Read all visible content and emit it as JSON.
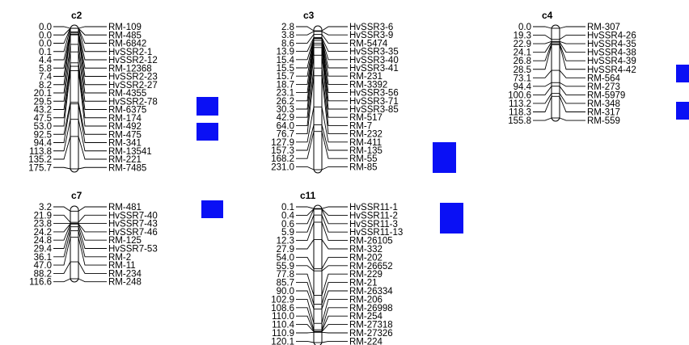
{
  "accent_color": "#0a10f5",
  "chromosomes": [
    {
      "name": "c2",
      "pos": [
        "0.0",
        "0.0",
        "0.0",
        "0.1",
        "4.4",
        "5.8",
        "7.4",
        "8.2",
        "20.1",
        "29.5",
        "43.2",
        "47.5",
        "53.0",
        "92.5",
        "94.4",
        "113.8",
        "135.2",
        "175.7"
      ],
      "markers": [
        "RM-109",
        "RM-485",
        "RM-6842",
        "HvSSR2-1",
        "HvSSR2-12",
        "RM-12368",
        "HvSSR2-23",
        "HvSSR2-27",
        "RM-4355",
        "HvSSR2-78",
        "RM-6375",
        "RM-174",
        "RM-492",
        "RM-475",
        "RM-341",
        "RM-13541",
        "RM-221",
        "RM-7485"
      ]
    },
    {
      "name": "c3",
      "pos": [
        "2.8",
        "3.8",
        "8.6",
        "13.9",
        "15.4",
        "15.5",
        "15.7",
        "18.7",
        "23.1",
        "26.2",
        "30.3",
        "42.9",
        "64.0",
        "76.7",
        "127.9",
        "157.3",
        "168.2",
        "231.0"
      ],
      "markers": [
        "HvSSR3-6",
        "HvSSR3-9",
        "RM-5474",
        "HvSSR3-35",
        "HvSSR3-40",
        "HvSSR3-41",
        "RM-231",
        "RM-3392",
        "HvSSR3-56",
        "HvSSR3-71",
        "HvSSR3-85",
        "RM-517",
        "RM-7",
        "RM-232",
        "RM-411",
        "RM-135",
        "RM-55",
        "RM-85"
      ]
    },
    {
      "name": "c4",
      "pos": [
        "0.0",
        "19.3",
        "22.9",
        "24.1",
        "26.8",
        "28.5",
        "73.1",
        "94.4",
        "100.6",
        "113.2",
        "118.3",
        "155.8"
      ],
      "markers": [
        "RM-307",
        "HvSSR4-26",
        "HvSSR4-35",
        "HvSSR4-38",
        "HvSSR4-39",
        "HvSSR4-42",
        "RM-564",
        "RM-273",
        "RM-5979",
        "RM-348",
        "RM-317",
        "RM-559"
      ]
    },
    {
      "name": "c7",
      "pos": [
        "3.2",
        "21.9",
        "23.8",
        "24.2",
        "24.8",
        "29.4",
        "36.1",
        "47.0",
        "88.2",
        "116.6"
      ],
      "markers": [
        "RM-481",
        "HvSSR7-40",
        "HvSSR7-43",
        "HvSSR7-46",
        "RM-125",
        "HvSSR7-53",
        "RM-2",
        "RM-11",
        "RM-234",
        "RM-248"
      ]
    },
    {
      "name": "c11",
      "pos": [
        "0.1",
        "0.4",
        "0.6",
        "5.9",
        "12.3",
        "27.9",
        "54.0",
        "55.9",
        "77.8",
        "85.7",
        "90.0",
        "102.9",
        "108.6",
        "110.0",
        "110.4",
        "110.9",
        "120.1"
      ],
      "markers": [
        "HvSSR11-1",
        "HvSSR11-2",
        "HvSSR11-3",
        "HvSSR11-13",
        "RM-26105",
        "RM-332",
        "RM-202",
        "RM-26652",
        "RM-229",
        "RM-21",
        "RM-26334",
        "RM-206",
        "RM-26998",
        "RM-254",
        "RM-27318",
        "RM-27326",
        "RM-224"
      ]
    }
  ]
}
